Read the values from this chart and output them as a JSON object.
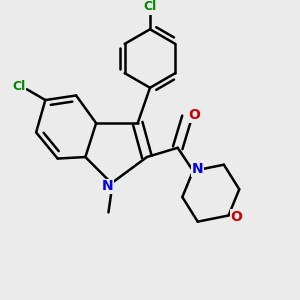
{
  "background_color": "#ebebeb",
  "bond_color": "#000000",
  "bond_width": 1.8,
  "atom_colors": {
    "N": "#0000ee",
    "O": "#cc0000",
    "Cl": "#008800",
    "C": "#000000"
  },
  "font_size_atoms": 10,
  "font_size_cl": 9,
  "font_size_methyl": 9
}
